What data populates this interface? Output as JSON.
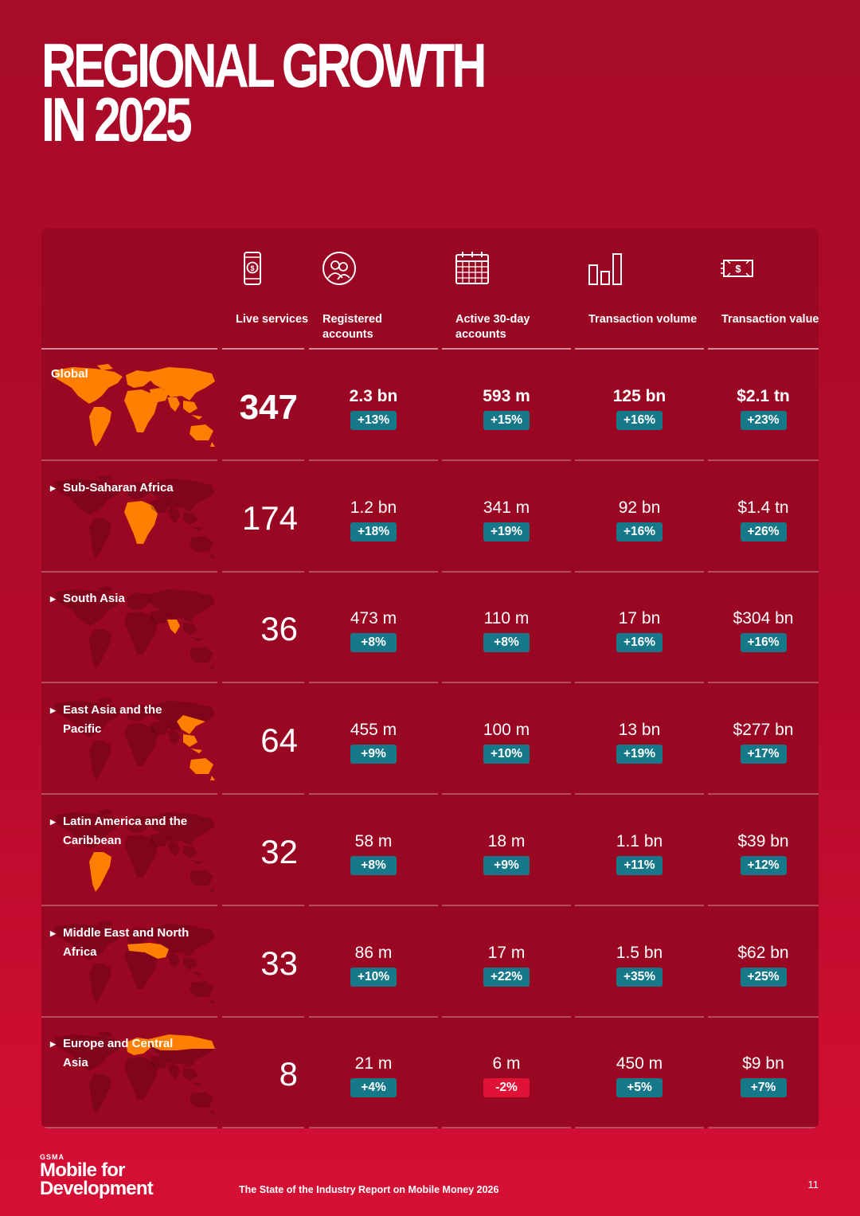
{
  "title": {
    "line1": "REGIONAL GROWTH",
    "line2": "IN 2025"
  },
  "headers": [
    {
      "label": "Live services",
      "icon": "mobile-money-icon"
    },
    {
      "label": "Registered accounts",
      "icon": "users-icon"
    },
    {
      "label": "Active 30-day accounts",
      "icon": "calendar-icon"
    },
    {
      "label": "Transaction volume",
      "icon": "bar-chart-icon"
    },
    {
      "label": "Transaction value",
      "icon": "banknote-icon"
    }
  ],
  "rows": [
    {
      "region": "Global",
      "live": "347",
      "metrics": [
        {
          "value": "2.3 bn",
          "change": "+13%"
        },
        {
          "value": "593 m",
          "change": "+15%"
        },
        {
          "value": "125 bn",
          "change": "+16%"
        },
        {
          "value": "$2.1 tn",
          "change": "+23%"
        }
      ]
    },
    {
      "region": "Sub-Saharan Africa",
      "live": "174",
      "metrics": [
        {
          "value": "1.2 bn",
          "change": "+18%"
        },
        {
          "value": "341 m",
          "change": "+19%"
        },
        {
          "value": "92 bn",
          "change": "+16%"
        },
        {
          "value": "$1.4 tn",
          "change": "+26%"
        }
      ]
    },
    {
      "region": "South Asia",
      "live": "36",
      "metrics": [
        {
          "value": "473 m",
          "change": "+8%"
        },
        {
          "value": "110 m",
          "change": "+8%"
        },
        {
          "value": "17 bn",
          "change": "+16%"
        },
        {
          "value": "$304 bn",
          "change": "+16%"
        }
      ]
    },
    {
      "region": "East Asia and the Pacific",
      "live": "64",
      "metrics": [
        {
          "value": "455 m",
          "change": "+9%"
        },
        {
          "value": "100 m",
          "change": "+10%"
        },
        {
          "value": "13 bn",
          "change": "+19%"
        },
        {
          "value": "$277 bn",
          "change": "+17%"
        }
      ]
    },
    {
      "region": "Latin America and the Caribbean",
      "live": "32",
      "metrics": [
        {
          "value": "58 m",
          "change": "+8%"
        },
        {
          "value": "18 m",
          "change": "+9%"
        },
        {
          "value": "1.1 bn",
          "change": "+11%"
        },
        {
          "value": "$39 bn",
          "change": "+12%"
        }
      ]
    },
    {
      "region": "Middle East and North Africa",
      "live": "33",
      "metrics": [
        {
          "value": "86 m",
          "change": "+10%"
        },
        {
          "value": "17 m",
          "change": "+22%"
        },
        {
          "value": "1.5 bn",
          "change": "+35%"
        },
        {
          "value": "$62 bn",
          "change": "+25%"
        }
      ]
    },
    {
      "region": "Europe and Central Asia",
      "live": "8",
      "metrics": [
        {
          "value": "21 m",
          "change": "+4%"
        },
        {
          "value": "6 m",
          "change": "-2%"
        },
        {
          "value": "450 m",
          "change": "+5%"
        },
        {
          "value": "$9 bn",
          "change": "+7%"
        }
      ]
    }
  ],
  "colors": {
    "background": "#a70b27",
    "panel": "#9a0723",
    "highlight": "#ff7f00",
    "badge_positive": "#17788a",
    "badge_negative": "#e11237"
  },
  "footer": {
    "logo_top": "GSMA",
    "logo_line1": "Mobile for",
    "logo_line2": "Development",
    "report": "The State of the Industry Report on Mobile Money 2026",
    "page": "11"
  }
}
